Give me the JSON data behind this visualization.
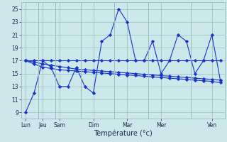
{
  "xlabel": "Température (°c)",
  "bg_color": "#cce8ea",
  "grid_color": "#99bbbd",
  "line_color": "#1533cc",
  "ylim": [
    8,
    26
  ],
  "yticks": [
    9,
    11,
    13,
    15,
    17,
    19,
    21,
    23,
    25
  ],
  "x_labels": [
    "Lun",
    "Jeu",
    "Sam",
    "Dim",
    "Mar",
    "Mer",
    "Ven"
  ],
  "xtick_positions": [
    0,
    2,
    4,
    8,
    12,
    16,
    22
  ],
  "n_points": 24,
  "series1": [
    9,
    12,
    17,
    16,
    13,
    13,
    16,
    13,
    12,
    20,
    21,
    25,
    23,
    17,
    17,
    20,
    15,
    17,
    21,
    20,
    15,
    17,
    21,
    14
  ],
  "series2": [
    17,
    17,
    17,
    17,
    17,
    17,
    17,
    17,
    17,
    17,
    17,
    17,
    17,
    17,
    17,
    17,
    17,
    17,
    17,
    17,
    17,
    17,
    17,
    17
  ],
  "series3": [
    17,
    16.8,
    16.5,
    16.3,
    16.1,
    15.9,
    15.7,
    15.6,
    15.5,
    15.4,
    15.3,
    15.2,
    15.1,
    15.0,
    14.9,
    14.8,
    14.7,
    14.6,
    14.5,
    14.4,
    14.3,
    14.2,
    14.1,
    14.0
  ],
  "series4": [
    17,
    16.5,
    16.0,
    15.8,
    15.6,
    15.5,
    15.4,
    15.3,
    15.2,
    15.1,
    15.0,
    14.9,
    14.8,
    14.7,
    14.6,
    14.5,
    14.4,
    14.3,
    14.2,
    14.1,
    14.0,
    13.9,
    13.8,
    13.6
  ],
  "sep_x": [
    1,
    3,
    6,
    10,
    14,
    19
  ],
  "xlabel_fontsize": 7,
  "tick_fontsize": 5.5
}
